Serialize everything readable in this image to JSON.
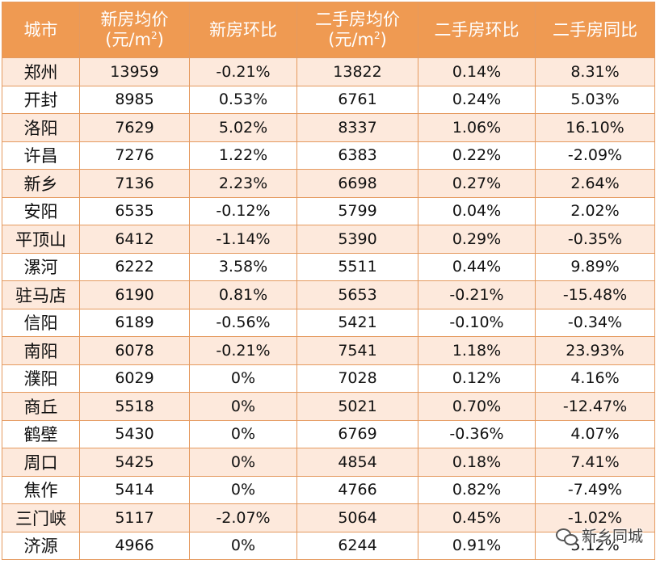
{
  "table": {
    "headers": [
      {
        "line1": "城市",
        "line2": ""
      },
      {
        "line1": "新房均价",
        "line2": "(元/m",
        "sup": "2",
        "close": ")"
      },
      {
        "line1": "新房环比",
        "line2": ""
      },
      {
        "line1": "二手房均价",
        "line2": "(元/m",
        "sup": "2",
        "close": ")"
      },
      {
        "line1": "二手房环比",
        "line2": ""
      },
      {
        "line1": "二手房同比",
        "line2": ""
      }
    ],
    "rows": [
      [
        "郑州",
        "13959",
        "-0.21%",
        "13822",
        "0.14%",
        "8.31%"
      ],
      [
        "开封",
        "8985",
        "0.53%",
        "6761",
        "0.24%",
        "5.03%"
      ],
      [
        "洛阳",
        "7629",
        "5.02%",
        "8337",
        "1.06%",
        "16.10%"
      ],
      [
        "许昌",
        "7276",
        "1.22%",
        "6383",
        "0.22%",
        "-2.09%"
      ],
      [
        "新乡",
        "7136",
        "2.23%",
        "6698",
        "0.27%",
        "2.64%"
      ],
      [
        "安阳",
        "6535",
        "-0.12%",
        "5799",
        "0.04%",
        "2.02%"
      ],
      [
        "平顶山",
        "6412",
        "-1.14%",
        "5390",
        "0.29%",
        "-0.35%"
      ],
      [
        "漯河",
        "6222",
        "3.58%",
        "5511",
        "0.44%",
        "9.89%"
      ],
      [
        "驻马店",
        "6190",
        "0.81%",
        "5653",
        "-0.21%",
        "-15.48%"
      ],
      [
        "信阳",
        "6189",
        "-0.56%",
        "5421",
        "-0.10%",
        "-0.34%"
      ],
      [
        "南阳",
        "6078",
        "-0.21%",
        "7541",
        "1.18%",
        "23.93%"
      ],
      [
        "濮阳",
        "6029",
        "0%",
        "7028",
        "0.12%",
        "4.16%"
      ],
      [
        "商丘",
        "5518",
        "0%",
        "5021",
        "0.70%",
        "-12.47%"
      ],
      [
        "鹤壁",
        "5430",
        "0%",
        "6769",
        "-0.36%",
        "4.07%"
      ],
      [
        "周口",
        "5425",
        "0%",
        "4854",
        "0.18%",
        "7.41%"
      ],
      [
        "焦作",
        "5414",
        "0%",
        "4766",
        "0.82%",
        "-7.49%"
      ],
      [
        "三门峡",
        "5117",
        "-2.07%",
        "5064",
        "0.45%",
        "-1.02%"
      ],
      [
        "济源",
        "4966",
        "0%",
        "6244",
        "0.91%",
        "5.12%"
      ]
    ]
  },
  "watermark": {
    "text": "新乡同城",
    "icon": "wechat-icon"
  },
  "colors": {
    "header_bg": "#ef9a52",
    "odd_row_bg": "#fde9dc",
    "border": "#e59a5f"
  }
}
